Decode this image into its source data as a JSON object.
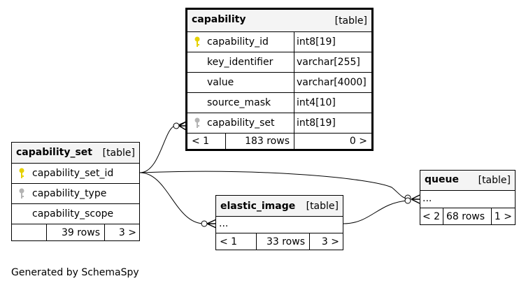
{
  "colors": {
    "primary_key": "#e6d200",
    "foreign_key": "#b4b4b4",
    "header_bg": "#f4f4f4",
    "line": "#000000"
  },
  "capability": {
    "name": "capability",
    "kind": "[table]",
    "columns": [
      {
        "name": "capability_id",
        "type": "int8[19]",
        "key_icon": "primary-key-icon"
      },
      {
        "name": "key_identifier",
        "type": "varchar[255]"
      },
      {
        "name": "value",
        "type": "varchar[4000]"
      },
      {
        "name": "source_mask",
        "type": "int4[10]"
      },
      {
        "name": "capability_set",
        "type": "int8[19]",
        "key_icon": "foreign-key-icon"
      }
    ],
    "footer": {
      "parents": "< 1",
      "rows": "183 rows",
      "children": "0 >"
    }
  },
  "capability_set": {
    "name": "capability_set",
    "kind": "[table]",
    "columns": [
      {
        "name": "capability_set_id",
        "key_icon": "primary-key-icon"
      },
      {
        "name": "capability_type",
        "key_icon": "foreign-key-icon"
      },
      {
        "name": "capability_scope"
      }
    ],
    "footer": {
      "parents": "",
      "rows": "39 rows",
      "children": "3 >"
    }
  },
  "elastic_image": {
    "name": "elastic_image",
    "kind": "[table]",
    "ellipsis": "...",
    "footer": {
      "parents": "< 1",
      "rows": "33 rows",
      "children": "3 >"
    }
  },
  "queue": {
    "name": "queue",
    "kind": "[table]",
    "ellipsis": "...",
    "footer": {
      "parents": "< 2",
      "rows": "68 rows",
      "children": "1 >"
    }
  },
  "footer_text": "Generated by SchemaSpy"
}
